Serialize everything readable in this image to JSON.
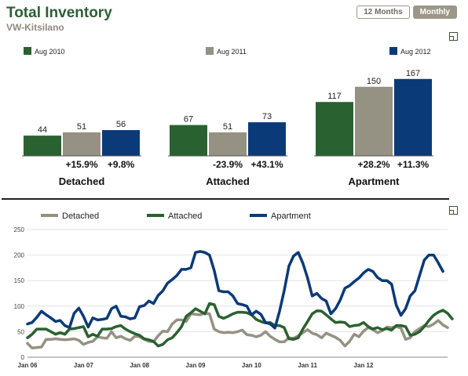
{
  "header": {
    "title": "Total Inventory",
    "subtitle": "VW-Kitsilano",
    "tabs": [
      {
        "label": "12 Months",
        "active": false
      },
      {
        "label": "Monthly",
        "active": true
      }
    ]
  },
  "colors": {
    "detached": "#959183",
    "attached": "#2a6130",
    "apartment": "#0b3a78",
    "green_brand": "#2d5e35"
  },
  "chart_data": [
    {
      "type": "bar",
      "legend": [
        "Aug 2010",
        "Aug 2011",
        "Aug 2012"
      ],
      "categories": [
        "Detached",
        "Attached",
        "Apartment"
      ],
      "series": [
        {
          "name": "Aug 2010",
          "values": [
            44,
            67,
            117
          ]
        },
        {
          "name": "Aug 2011",
          "values": [
            51,
            51,
            150
          ]
        },
        {
          "name": "Aug 2012",
          "values": [
            56,
            73,
            167
          ]
        }
      ],
      "changes": [
        [
          "+15.9%",
          "+9.8%"
        ],
        [
          "-23.9%",
          "+43.1%"
        ],
        [
          "+28.2%",
          "+11.3%"
        ]
      ],
      "legend_position": "top"
    },
    {
      "type": "line",
      "legend": [
        "Detached",
        "Attached",
        "Apartment"
      ],
      "legend_position": "top",
      "ylim": [
        0,
        250
      ],
      "yticks": [
        0,
        50,
        100,
        150,
        200,
        250
      ],
      "xticks": [
        "Jan 06",
        "Jan 07",
        "Jan 08",
        "Jan 09",
        "Jan 10",
        "Jan 11",
        "Jan 12"
      ],
      "x_start": "2006-01",
      "x_end": "2012-08",
      "grid": true,
      "series": [
        {
          "name": "Detached",
          "values": [
            27,
            18,
            19,
            20,
            35,
            35,
            36,
            35,
            34,
            35,
            36,
            33,
            25,
            29,
            31,
            40,
            38,
            37,
            50,
            38,
            41,
            36,
            33,
            41,
            40,
            35,
            31,
            30,
            42,
            51,
            50,
            65,
            73,
            73,
            70,
            85,
            84,
            83,
            86,
            85,
            55,
            50,
            48,
            49,
            48,
            50,
            53,
            44,
            43,
            40,
            43,
            50,
            41,
            35,
            30,
            30,
            38,
            37,
            42,
            48,
            54,
            47,
            44,
            38,
            47,
            43,
            39,
            33,
            22,
            31,
            45,
            40,
            51,
            58,
            54,
            48,
            52,
            59,
            58,
            60,
            57,
            35,
            38,
            50,
            56,
            62,
            60,
            65,
            72,
            63,
            58
          ]
        },
        {
          "name": "Attached",
          "values": [
            38,
            45,
            55,
            55,
            55,
            50,
            45,
            48,
            45,
            55,
            56,
            58,
            60,
            40,
            45,
            41,
            55,
            55,
            56,
            60,
            62,
            55,
            50,
            46,
            43,
            36,
            34,
            31,
            22,
            25,
            34,
            38,
            48,
            60,
            80,
            87,
            95,
            90,
            85,
            105,
            103,
            80,
            76,
            80,
            85,
            88,
            88,
            87,
            83,
            74,
            70,
            67,
            68,
            62,
            62,
            58,
            36,
            35,
            38,
            55,
            70,
            85,
            91,
            90,
            83,
            75,
            68,
            69,
            68,
            60,
            62,
            63,
            68,
            60,
            55,
            58,
            54,
            56,
            53,
            62,
            62,
            60,
            43,
            45,
            50,
            60,
            72,
            82,
            88,
            92,
            86,
            75
          ]
        },
        {
          "name": "Apartment",
          "values": [
            65,
            68,
            78,
            90,
            83,
            77,
            70,
            72,
            62,
            58,
            86,
            96,
            80,
            59,
            77,
            73,
            74,
            76,
            95,
            100,
            80,
            79,
            75,
            77,
            99,
            101,
            110,
            105,
            121,
            130,
            145,
            152,
            160,
            172,
            172,
            175,
            205,
            207,
            205,
            200,
            170,
            130,
            128,
            128,
            120,
            105,
            103,
            100,
            83,
            90,
            84,
            68,
            65,
            57,
            90,
            130,
            178,
            198,
            205,
            184,
            155,
            120,
            125,
            115,
            110,
            85,
            95,
            112,
            135,
            140,
            148,
            155,
            165,
            172,
            168,
            156,
            150,
            150,
            143,
            102,
            82,
            95,
            120,
            130,
            160,
            190,
            200,
            200,
            185,
            168
          ]
        }
      ]
    }
  ]
}
